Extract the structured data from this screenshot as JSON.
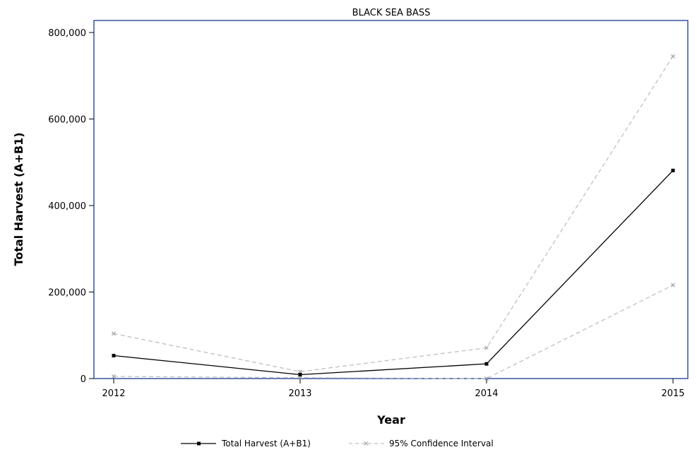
{
  "chart_data": {
    "type": "line",
    "title": "BLACK SEA BASS",
    "xlabel": "Year",
    "ylabel": "Total Harvest (A+B1)",
    "x": [
      2012,
      2013,
      2014,
      2015
    ],
    "xlim": [
      2012,
      2015
    ],
    "ylim": [
      0,
      800000
    ],
    "yticks": [
      0,
      200000,
      400000,
      600000,
      800000
    ],
    "ytick_labels": [
      "0",
      "200,000",
      "400,000",
      "600,000",
      "800,000"
    ],
    "xtick_labels": [
      "2012",
      "2013",
      "2014",
      "2015"
    ],
    "series": [
      {
        "name": "Total Harvest (A+B1)",
        "values": [
          53000,
          9000,
          34000,
          481000
        ],
        "color": "#000000",
        "style": "solid",
        "marker": "square"
      },
      {
        "name": "95% Confidence Interval",
        "values": [
          104000,
          16000,
          71000,
          745000
        ],
        "color": "#c0c0c0",
        "style": "dashed",
        "marker": "x"
      },
      {
        "name": "95% Confidence Interval",
        "values": [
          5000,
          2000,
          0,
          216000
        ],
        "color": "#c0c0c0",
        "style": "dashed",
        "marker": "x"
      }
    ],
    "legend": {
      "position": "bottom",
      "entries": [
        "Total Harvest (A+B1)",
        "95% Confidence Interval"
      ]
    },
    "grid": false
  }
}
